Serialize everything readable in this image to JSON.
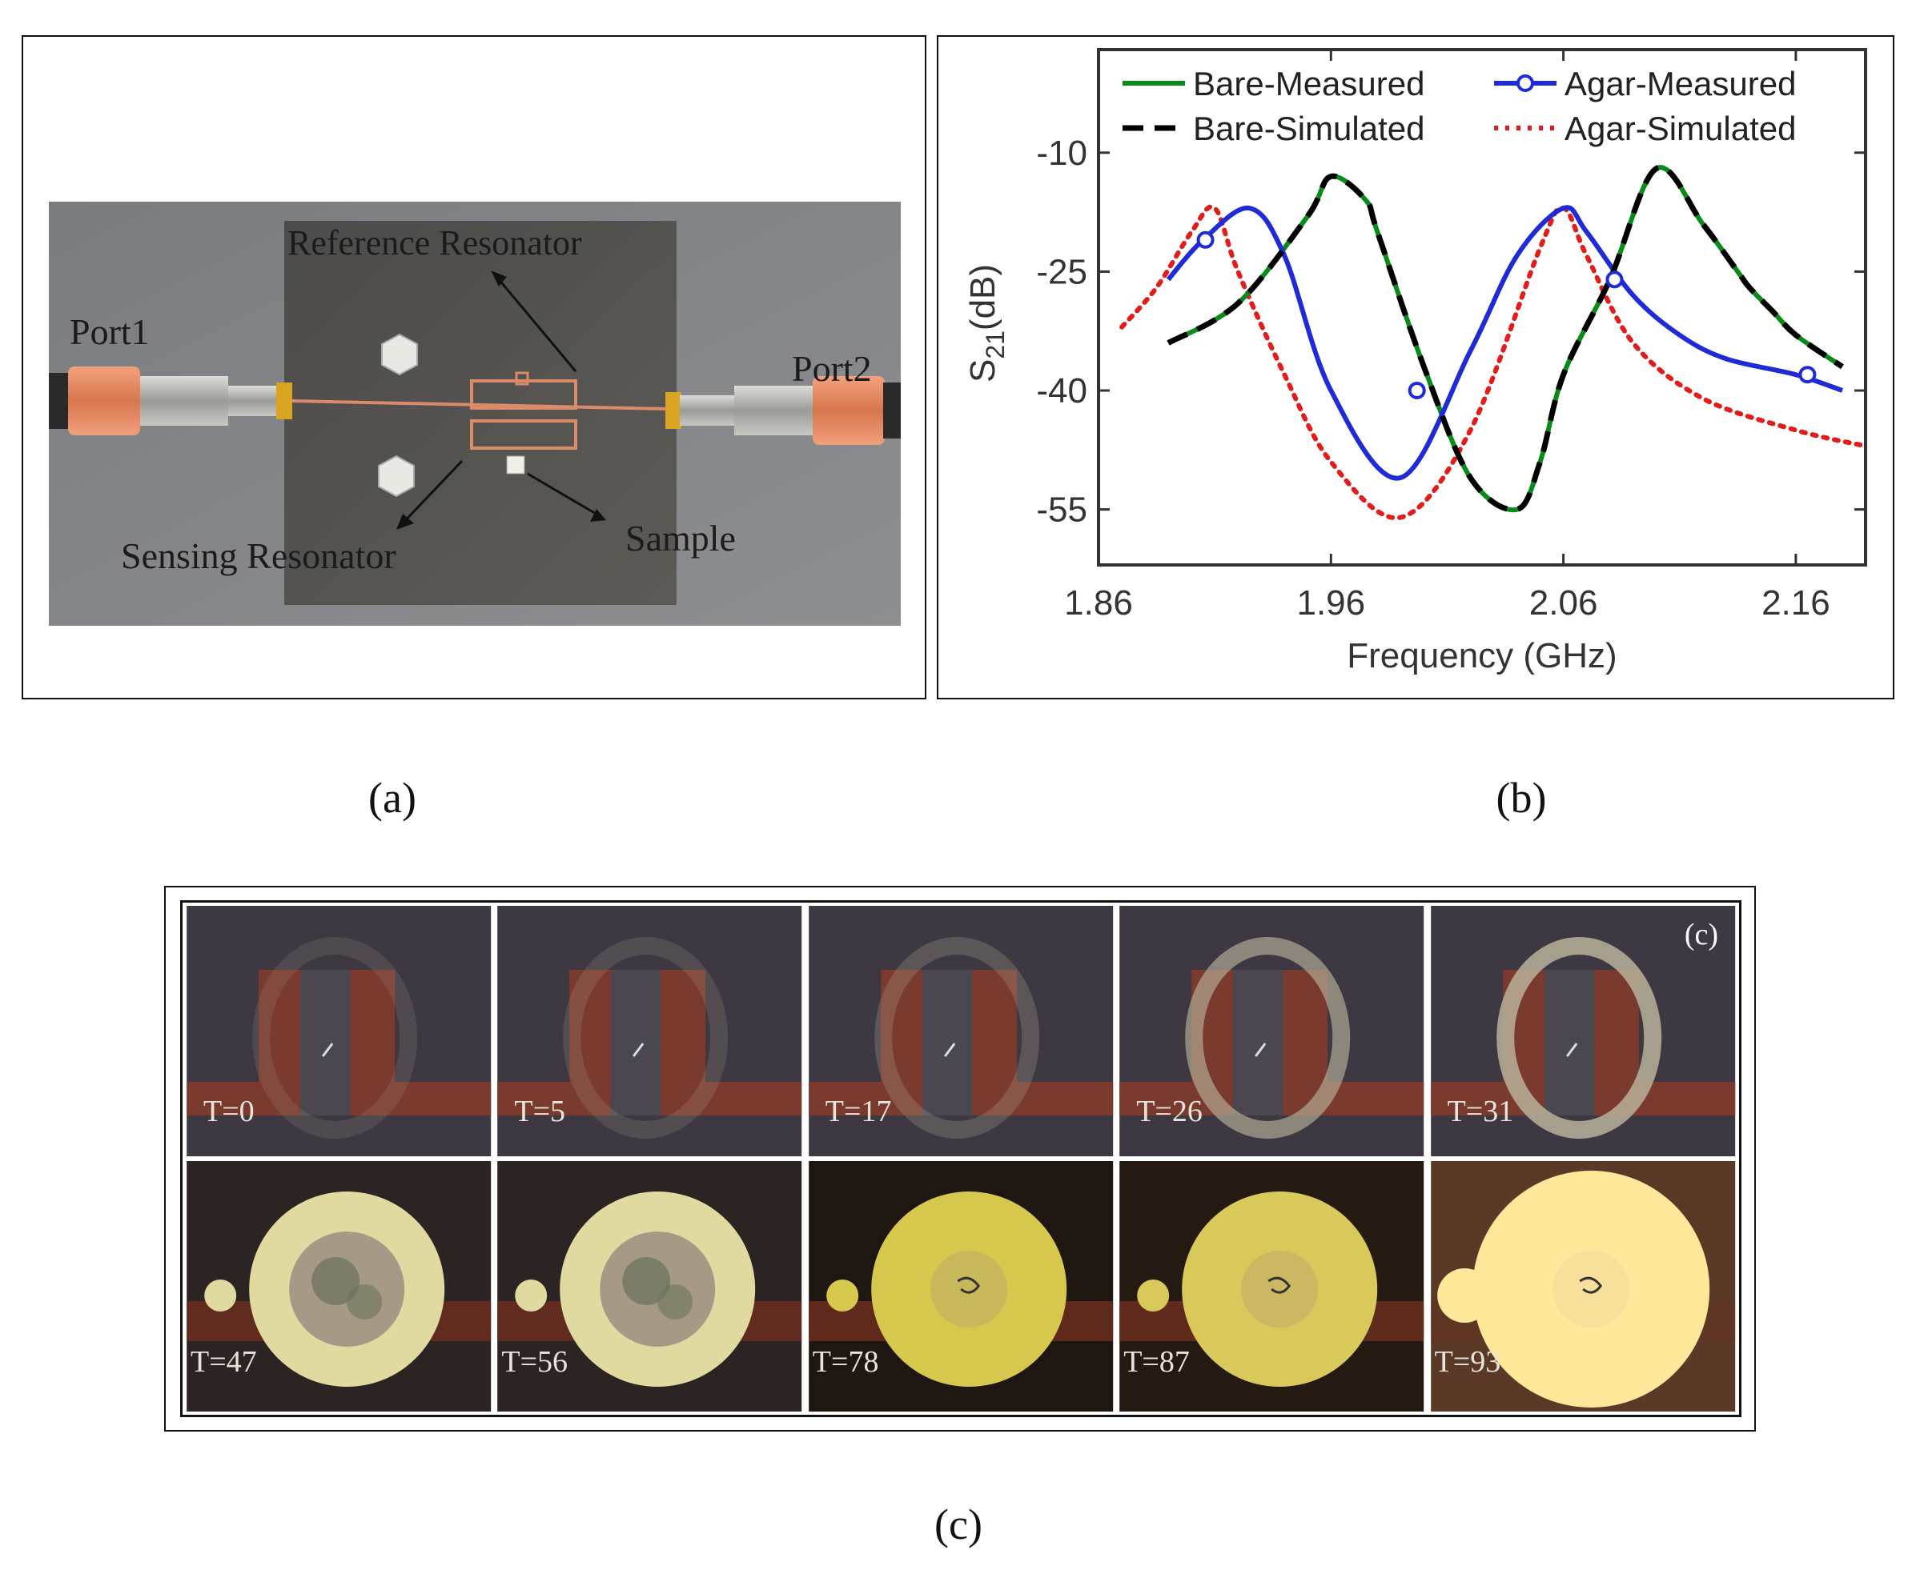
{
  "panel_a": {
    "labels": {
      "reference": "Reference Resonator",
      "port1": "Port1",
      "port2": "Port2",
      "sensing": "Sensing Resonator",
      "sample": "Sample"
    },
    "caption": "(a)"
  },
  "panel_b": {
    "caption": "(b)"
  },
  "panel_c": {
    "tag": "(c)",
    "caption": "(c)",
    "times": [
      "T=0",
      "T=5",
      "T=17",
      "T=26",
      "T=31",
      "T=47",
      "T=56",
      "T=78",
      "T=87",
      "T=93"
    ]
  },
  "colors": {
    "bare_measured": "#0a8a1a",
    "agar_measured": "#1f2bd6",
    "bare_simulated": "#000000",
    "agar_simulated": "#e21b1b"
  },
  "chart_data": {
    "type": "line",
    "title": "",
    "xlabel": "Frequency (GHz)",
    "ylabel": "S21(dB)",
    "xlim": [
      1.86,
      2.19
    ],
    "ylim": [
      -62,
      3
    ],
    "xticks": [
      1.86,
      1.96,
      2.06,
      2.16
    ],
    "xtick_labels": [
      "1.86",
      "1.96",
      "2.06",
      "2.16"
    ],
    "yticks": [
      -10,
      -25,
      -40,
      -55
    ],
    "ytick_labels": [
      "-10",
      "-25",
      "-40",
      "-55"
    ],
    "legend": [
      "Bare-Measured",
      "Agar-Measured",
      "Bare-Simulated",
      "Agar-Simulated"
    ],
    "legend_position": "top",
    "series": [
      {
        "name": "Bare-Measured",
        "style": "solid",
        "x": [
          1.89,
          1.92,
          1.95,
          1.96,
          1.975,
          1.98,
          2.0,
          2.02,
          2.04,
          2.05,
          2.06,
          2.08,
          2.1,
          2.12,
          2.135,
          2.14,
          2.15,
          2.16,
          2.18
        ],
        "y": [
          -34,
          -29,
          -18,
          -13,
          -16,
          -20,
          -37,
          -51,
          -55,
          -49,
          -38,
          -26,
          -12,
          -19,
          -25,
          -27,
          -30,
          -33,
          -37
        ]
      },
      {
        "name": "Agar-Measured",
        "style": "solid-circle",
        "x": [
          1.89,
          1.905,
          1.925,
          1.94,
          1.96,
          1.99,
          2.02,
          2.04,
          2.06,
          2.07,
          2.09,
          2.11,
          2.13,
          2.16,
          2.18
        ],
        "y": [
          -26,
          -21,
          -17,
          -23,
          -40,
          -51,
          -35,
          -23,
          -17,
          -20,
          -28,
          -33,
          -36,
          -38,
          -40
        ],
        "markers_x": [
          1.906,
          1.997,
          2.082,
          2.165
        ],
        "markers_y": [
          -21,
          -40,
          -26,
          -38
        ]
      },
      {
        "name": "Bare-Simulated",
        "style": "dashed",
        "x": [
          1.89,
          1.92,
          1.95,
          1.96,
          1.975,
          1.98,
          2.0,
          2.02,
          2.04,
          2.05,
          2.06,
          2.08,
          2.1,
          2.12,
          2.135,
          2.14,
          2.15,
          2.16,
          2.18
        ],
        "y": [
          -34,
          -29,
          -18,
          -13,
          -16,
          -20,
          -37,
          -51,
          -55,
          -49,
          -38,
          -26,
          -12,
          -19,
          -25,
          -27,
          -30,
          -33,
          -37
        ]
      },
      {
        "name": "Agar-Simulated",
        "style": "dotted",
        "x": [
          1.87,
          1.885,
          1.9,
          1.91,
          1.92,
          1.94,
          1.96,
          1.99,
          2.02,
          2.05,
          2.06,
          2.07,
          2.09,
          2.12,
          2.16,
          2.19
        ],
        "y": [
          -32,
          -27,
          -20,
          -17,
          -25,
          -38,
          -49,
          -56,
          -45,
          -22,
          -17,
          -23,
          -34,
          -41,
          -45,
          -47
        ]
      }
    ]
  }
}
